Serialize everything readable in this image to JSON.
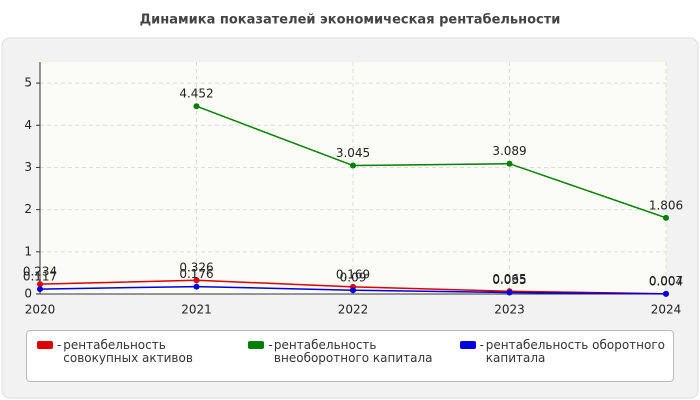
{
  "chart_data": {
    "type": "line",
    "title": "Динамика показателей экономическая рентабельности",
    "categories": [
      "2020",
      "2021",
      "2022",
      "2023",
      "2024"
    ],
    "series": [
      {
        "name": "рентабельность совокупных активов",
        "color": "#e00000",
        "values": [
          0.234,
          0.326,
          0.169,
          0.065,
          0.007
        ]
      },
      {
        "name": "рентабельность внеоборотного капитала",
        "color": "#008000",
        "values": [
          null,
          4.452,
          3.045,
          3.089,
          1.806
        ]
      },
      {
        "name": "рентабельность оборотного капитала",
        "color": "#0000e0",
        "values": [
          0.117,
          0.176,
          0.09,
          0.035,
          0.004
        ]
      }
    ],
    "ylim": [
      0,
      5.5
    ],
    "yticks": [
      0,
      1,
      2,
      3,
      4,
      5
    ],
    "grid": true,
    "legend": "bottom"
  }
}
